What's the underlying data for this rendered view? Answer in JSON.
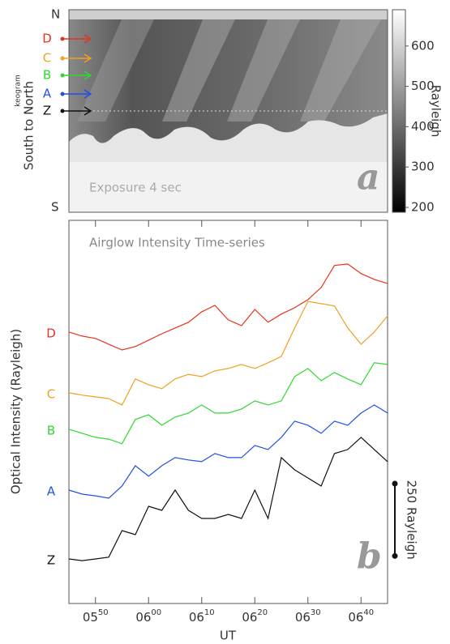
{
  "chart_data": [
    {
      "type": "keogram",
      "ylabel_prefix": "keogram",
      "ylabel": "South to North",
      "top_label": "N",
      "bottom_label": "S",
      "annotation": "Exposure 4 sec",
      "panel_label": "a",
      "colorbar": {
        "label": "Rayleigh",
        "lim": [
          188,
          690
        ],
        "ticks": [
          200,
          300,
          400,
          500,
          600
        ]
      }
    },
    {
      "type": "line",
      "title": "Airglow Intensity Time-series",
      "ylabel": "Optical Intensity (Rayleigh)",
      "xlabel": "UT",
      "panel_label": "b",
      "x": [
        45,
        47.5,
        50,
        52.5,
        55,
        57.5,
        60,
        62.5,
        65,
        67.5,
        70,
        72.5,
        75,
        77.5,
        80,
        82.5,
        85,
        87.5,
        90,
        92.5,
        95,
        97.5,
        100,
        102.5,
        105
      ],
      "xlim": [
        45,
        105
      ],
      "xticks": [
        {
          "value": 50,
          "label": "0550"
        },
        {
          "value": 60,
          "label": "0600"
        },
        {
          "value": 70,
          "label": "0610"
        },
        {
          "value": 80,
          "label": "0620"
        },
        {
          "value": 90,
          "label": "0630"
        },
        {
          "value": 100,
          "label": "0640"
        }
      ],
      "ylim": [
        0,
        1324
      ],
      "scale_bar": {
        "value": 250,
        "label": "250 Rayleigh"
      },
      "series": [
        {
          "name": "D",
          "color": "#e8321e",
          "values": [
            938,
            924,
            916,
            896,
            876,
            888,
            910,
            932,
            952,
            972,
            1008,
            1030,
            980,
            960,
            1016,
            972,
            1000,
            1022,
            1050,
            1092,
            1168,
            1173,
            1140,
            1120,
            1106
          ]
        },
        {
          "name": "C",
          "color": "#f0a020",
          "values": [
            728,
            720,
            714,
            708,
            686,
            776,
            756,
            742,
            776,
            792,
            784,
            804,
            812,
            826,
            812,
            832,
            854,
            952,
            1044,
            1036,
            1028,
            952,
            896,
            938,
            994
          ]
        },
        {
          "name": "B",
          "color": "#2ed82e",
          "values": [
            602,
            588,
            574,
            568,
            552,
            636,
            652,
            616,
            644,
            658,
            686,
            658,
            658,
            672,
            700,
            686,
            700,
            784,
            812,
            770,
            798,
            776,
            756,
            832,
            826
          ]
        },
        {
          "name": "A",
          "color": "#2050e8",
          "values": [
            392,
            378,
            372,
            364,
            406,
            476,
            440,
            476,
            504,
            496,
            490,
            518,
            504,
            504,
            546,
            532,
            574,
            630,
            616,
            588,
            630,
            616,
            658,
            686,
            658
          ]
        },
        {
          "name": "Z",
          "color": "#111111",
          "values": [
            154,
            148,
            154,
            160,
            252,
            238,
            336,
            322,
            392,
            322,
            294,
            294,
            308,
            294,
            392,
            294,
            504,
            462,
            434,
            406,
            518,
            532,
            574,
            532,
            490
          ]
        }
      ]
    }
  ]
}
